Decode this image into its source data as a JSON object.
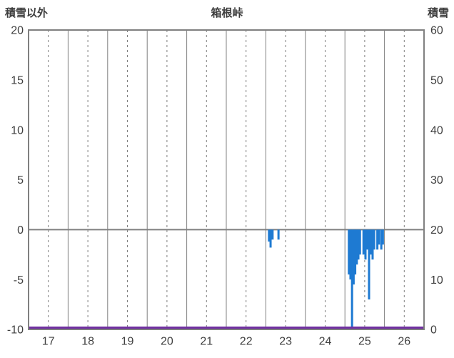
{
  "header": {
    "left_axis_title": "積雪以外",
    "title": "箱根峠",
    "right_axis_title": "積雪"
  },
  "chart_data": {
    "type": "bar",
    "title": "箱根峠",
    "left_axis": {
      "label": "積雪以外",
      "range": [
        -10,
        20
      ],
      "ticks": [
        20,
        15,
        10,
        5,
        0,
        -5,
        -10
      ]
    },
    "right_axis": {
      "label": "積雪",
      "range": [
        0,
        60
      ],
      "ticks": [
        60,
        50,
        40,
        30,
        20,
        10,
        0
      ]
    },
    "x_axis": {
      "range": [
        17,
        27
      ],
      "ticks": [
        17,
        18,
        19,
        20,
        21,
        22,
        23,
        24,
        25,
        26
      ],
      "grid": "solid-day-dashed-halfday"
    },
    "colors": {
      "bar": "#1e7ad2",
      "snow_line": "#7030a0",
      "grid": "#808080",
      "text": "#3f3f3f"
    },
    "series": [
      {
        "name": "precipitation-bars",
        "type": "bar",
        "axis": "left",
        "color": "#1e7ad2",
        "points": [
          {
            "x": 23.08,
            "y": -1.2
          },
          {
            "x": 23.12,
            "y": -1.8
          },
          {
            "x": 23.17,
            "y": -1.0
          },
          {
            "x": 23.32,
            "y": -1.0
          },
          {
            "x": 25.1,
            "y": -4.5
          },
          {
            "x": 25.14,
            "y": -5.0
          },
          {
            "x": 25.18,
            "y": -10.0
          },
          {
            "x": 25.22,
            "y": -5.5
          },
          {
            "x": 25.26,
            "y": -4.5
          },
          {
            "x": 25.3,
            "y": -3.5
          },
          {
            "x": 25.34,
            "y": -3.0
          },
          {
            "x": 25.38,
            "y": -2.5
          },
          {
            "x": 25.47,
            "y": -2.5
          },
          {
            "x": 25.52,
            "y": -3.0
          },
          {
            "x": 25.56,
            "y": -2.0
          },
          {
            "x": 25.61,
            "y": -7.0
          },
          {
            "x": 25.65,
            "y": -2.5
          },
          {
            "x": 25.7,
            "y": -3.0
          },
          {
            "x": 25.74,
            "y": -2.0
          },
          {
            "x": 25.82,
            "y": -2.0
          },
          {
            "x": 25.86,
            "y": -1.5
          },
          {
            "x": 25.92,
            "y": -2.0
          },
          {
            "x": 25.96,
            "y": -1.5
          }
        ]
      },
      {
        "name": "snow-depth-line",
        "type": "line",
        "axis": "right",
        "color": "#7030a0",
        "value": 0
      }
    ]
  }
}
